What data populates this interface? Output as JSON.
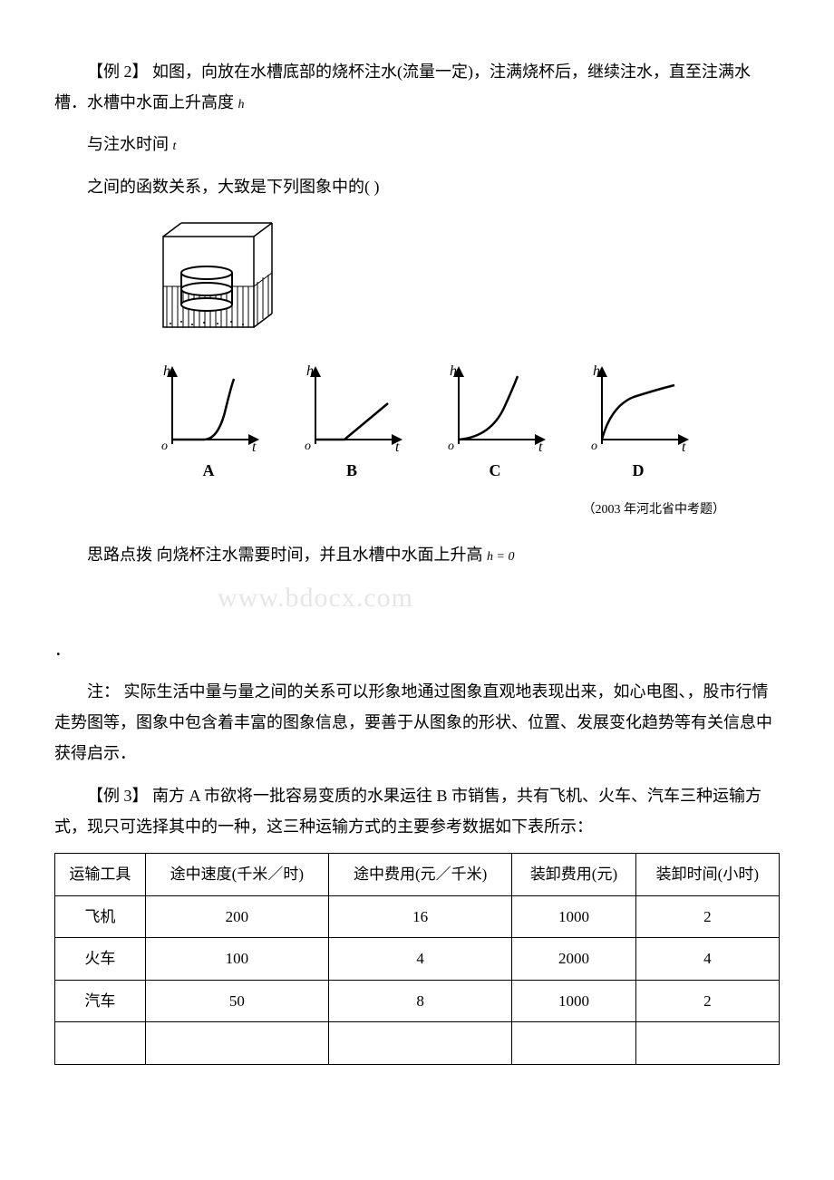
{
  "example2": {
    "title": "【例 2】 如图，向放在水槽底部的烧杯注水(流量一定)，注满烧杯后，继续注水，直至注满水槽．水槽中水面上升高度",
    "var_h": "h",
    "line2a": "与注水时间",
    "var_t": "t",
    "line3": "之间的函数关系，大致是下列图象中的(  )",
    "options": {
      "A": "A",
      "B": "B",
      "C": "C",
      "D": "D"
    },
    "source": "（2003 年河北省中考题）",
    "hint_label": "思路点拨 ",
    "hint_text": "向烧杯注水需要时间，并且水槽中水面上升高",
    "hint_eq": "h = 0",
    "note": "注：  实际生活中量与量之间的关系可以形象地通过图象直观地表现出来，如心电图、，股市行情走势图等，图象中包含着丰富的图象信息，要善于从图象的形状、位置、发展变化趋势等有关信息中获得启示．"
  },
  "watermark": "www.bdocx.com",
  "example3": {
    "title": "【例 3】 南方 A 市欲将一批容易变质的水果运往 B 市销售，共有飞机、火车、汽车三种运输方式，现只可选择其中的一种，这三种运输方式的主要参考数据如下表所示：",
    "table": {
      "headers": [
        "运输工具",
        "途中速度(千米／时)",
        "途中费用(元／千米)",
        "装卸费用(元)",
        "装卸时间(小时)"
      ],
      "rows": [
        [
          "飞机",
          "200",
          "16",
          "1000",
          "2"
        ],
        [
          "火车",
          "100",
          "4",
          "2000",
          "4"
        ],
        [
          "汽车",
          "50",
          "8",
          "1000",
          "2"
        ],
        [
          "",
          "",
          "",
          "",
          ""
        ]
      ]
    }
  },
  "graph_style": {
    "axis_color": "#000000",
    "axis_width": 2,
    "curve_color": "#000000",
    "curve_width": 2.5
  },
  "tank_style": {
    "stroke": "#000000",
    "fill_pattern": "#000000"
  }
}
